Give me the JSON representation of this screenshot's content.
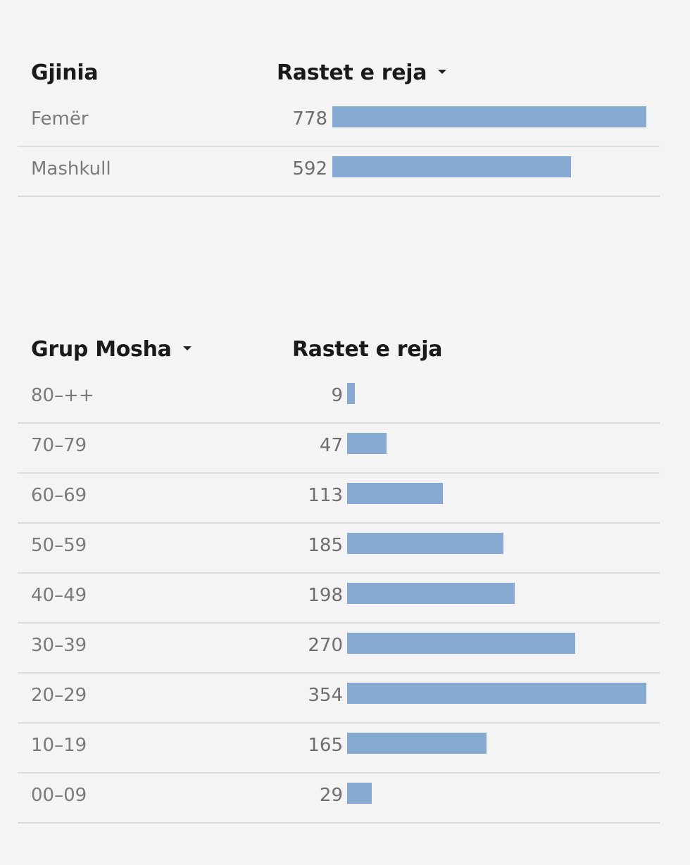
{
  "chart_data": [
    {
      "type": "table",
      "columns": [
        "Gjinia",
        "Rastet e reja"
      ],
      "sorted_column": "Rastet e reja",
      "categories": [
        "Femër",
        "Mashkull"
      ],
      "values": [
        778,
        592
      ],
      "bar_color": "#86aad1"
    },
    {
      "type": "table",
      "columns": [
        "Grup Mosha",
        "Rastet e reja"
      ],
      "sorted_column": "Grup Mosha",
      "categories": [
        "80–++",
        "70–79",
        "60–69",
        "50–59",
        "40–49",
        "30–39",
        "20–29",
        "10–19",
        "00–09"
      ],
      "values": [
        9,
        47,
        113,
        185,
        198,
        270,
        354,
        165,
        29
      ],
      "bar_color": "#86aad1"
    }
  ]
}
